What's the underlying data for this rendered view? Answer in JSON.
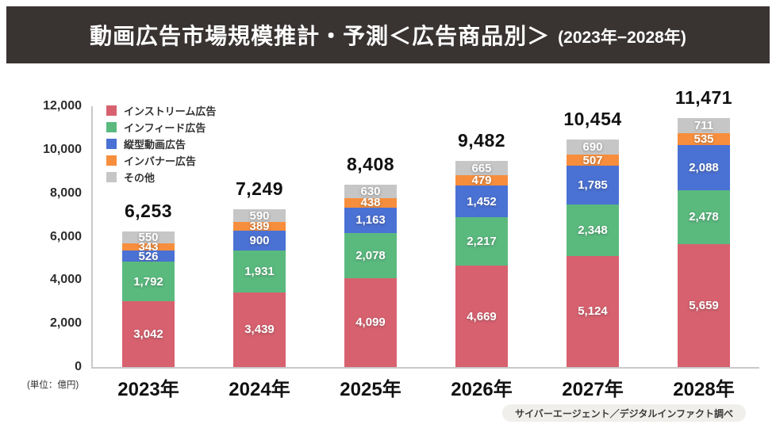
{
  "header": {
    "title_main": "動画広告市場規模推計・予測＜広告商品別＞",
    "title_years": "(2023年−2028年)"
  },
  "footer": {
    "source_label": "サイバーエージェント／デジタルインファクト調べ"
  },
  "chart_data": {
    "type": "bar",
    "stacked": true,
    "title": "動画広告市場規模推計・予測＜広告商品別＞ (2023年−2028年)",
    "unit_label": "(単位：億円)",
    "categories": [
      "2023年",
      "2024年",
      "2025年",
      "2026年",
      "2027年",
      "2028年"
    ],
    "series": [
      {
        "name": "インストリーム広告",
        "color": "#d8616f",
        "values": [
          3042,
          3439,
          4099,
          4669,
          5124,
          5659
        ]
      },
      {
        "name": "インフィード広告",
        "color": "#5aba7e",
        "values": [
          1792,
          1931,
          2078,
          2217,
          2348,
          2478
        ]
      },
      {
        "name": "縦型動画広告",
        "color": "#4a71d4",
        "values": [
          526,
          900,
          1163,
          1452,
          1785,
          2088
        ]
      },
      {
        "name": "インバナー広告",
        "color": "#f78e3d",
        "values": [
          343,
          389,
          438,
          479,
          507,
          535
        ]
      },
      {
        "name": "その他",
        "color": "#c6c6c6",
        "values": [
          550,
          590,
          630,
          665,
          690,
          711
        ]
      }
    ],
    "totals": [
      6253,
      7249,
      8408,
      9482,
      10454,
      11471
    ],
    "y_ticks": [
      0,
      2000,
      4000,
      6000,
      8000,
      10000,
      12000
    ],
    "ylim": [
      0,
      12000
    ],
    "grid": false,
    "legend_position": "top-left",
    "accent_colors": {
      "header_bg": "#393332",
      "axis": "#c9c9c9",
      "footer_pill_bg": "#f0efeb"
    }
  }
}
